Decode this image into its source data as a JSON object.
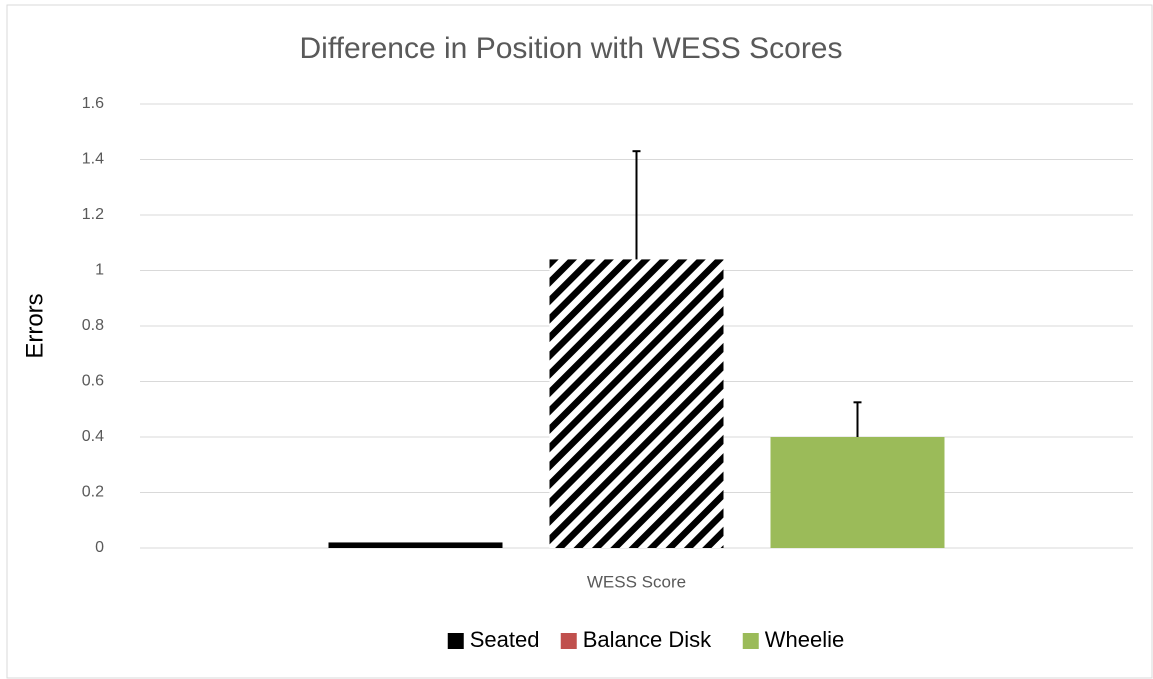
{
  "chart_data": {
    "type": "bar",
    "title": "Difference in Position with WESS Scores",
    "y_label": "Errors",
    "categories": [
      "WESS Score"
    ],
    "series": [
      {
        "name": "Seated",
        "color": "#000000",
        "values": [
          0.02
        ],
        "errors": [
          null
        ]
      },
      {
        "name": "Balance Disk",
        "color": "#c0504d",
        "pattern": "diagonal-stripes",
        "values": [
          1.04
        ],
        "errors": [
          0.39
        ]
      },
      {
        "name": "Wheelie",
        "color": "#9bbb59",
        "values": [
          0.4
        ],
        "errors": [
          0.125
        ]
      }
    ],
    "ylim": [
      0,
      1.6
    ],
    "yticks": [
      0,
      0.2,
      0.4,
      0.6,
      0.8,
      1,
      1.2,
      1.4,
      1.6
    ],
    "grid": true,
    "legend": "bottom"
  }
}
